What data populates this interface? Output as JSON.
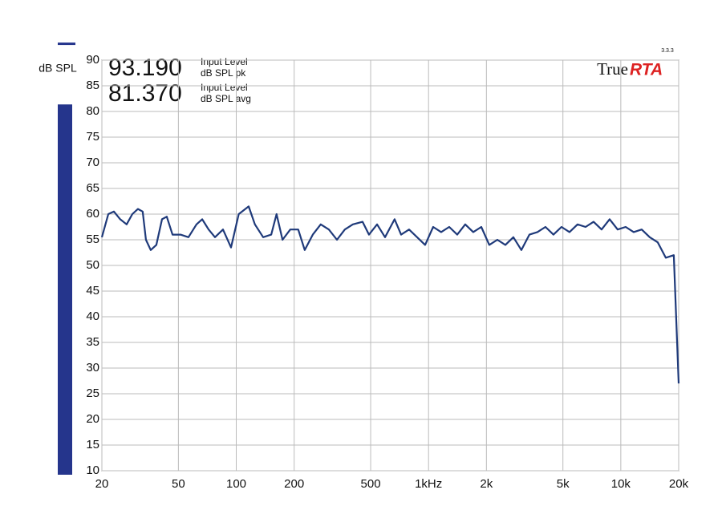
{
  "chart_data": {
    "type": "line",
    "log_x": true,
    "grid": true,
    "y_label": "dB SPL",
    "brand": {
      "text": "True",
      "accent": "RTA",
      "version": "3.3.3"
    },
    "readouts": [
      {
        "value": 93.19,
        "value_label": "93.190",
        "title": "Input Level",
        "unit": "dB SPL pk"
      },
      {
        "value": 81.37,
        "value_label": "81.370",
        "title": "Input Level",
        "unit": "dB SPL avg"
      }
    ],
    "xlim": [
      20,
      20000
    ],
    "ylim": [
      10,
      90
    ],
    "yticks": [
      10,
      15,
      20,
      25,
      30,
      35,
      40,
      45,
      50,
      55,
      60,
      65,
      70,
      75,
      80,
      85,
      90
    ],
    "xticks": [
      20,
      50,
      100,
      200,
      500,
      {
        "value": 1000,
        "label": "1kHz"
      },
      {
        "value": 2000,
        "label": "2k"
      },
      {
        "value": 5000,
        "label": "5k"
      },
      {
        "value": 10000,
        "label": "10k"
      },
      {
        "value": 20000,
        "label": "20k"
      }
    ],
    "x": [
      20,
      21.6,
      23.1,
      24.9,
      26.9,
      28.8,
      30.8,
      32.6,
      33.9,
      35.9,
      38.4,
      41.1,
      43.5,
      46.6,
      51.3,
      56.4,
      62.1,
      66.5,
      71.8,
      77.5,
      85.3,
      93.9,
      103,
      116,
      125,
      138,
      152,
      162,
      174,
      191,
      210,
      227,
      250,
      275,
      303,
      334,
      367,
      404,
      454,
      490,
      540,
      594,
      666,
      720,
      792,
      872,
      960,
      1057,
      1163,
      1281,
      1410,
      1552,
      1708,
      1881,
      2070,
      2280,
      2510,
      2762,
      3040,
      3346,
      3684,
      4056,
      4464,
      4914,
      5410,
      5956,
      6558,
      7218,
      7944,
      8746,
      9628,
      10600,
      11668,
      12844,
      14138,
      15564,
      17136,
      18864,
      20000
    ],
    "series": [
      {
        "name": "RTA",
        "color": "#1f3a7a",
        "values": [
          55.5,
          60,
          60.5,
          59,
          58,
          60,
          61,
          60.5,
          55,
          53,
          54,
          59,
          59.5,
          56,
          56,
          55.5,
          58,
          59,
          57,
          55.5,
          57,
          53.5,
          60,
          61.5,
          58,
          55.5,
          56,
          60,
          55,
          57,
          57,
          53,
          56,
          58,
          57,
          55,
          57,
          58,
          58.5,
          56,
          58,
          55.5,
          59,
          56,
          57,
          55.5,
          54,
          57.5,
          56.5,
          57.5,
          56,
          58,
          56.5,
          57.5,
          54,
          55,
          54,
          55.5,
          53,
          56,
          56.5,
          57.5,
          56,
          57.5,
          56.5,
          58,
          57.5,
          58.5,
          57,
          59,
          57,
          57.5,
          56.5,
          57,
          55.5,
          54.5,
          51.5,
          52,
          27
        ]
      }
    ]
  }
}
